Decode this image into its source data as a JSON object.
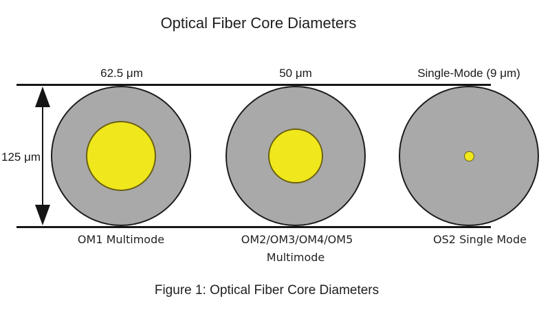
{
  "page": {
    "title": "Optical Fiber Core Diameters",
    "caption": "Figure 1: Optical Fiber Core Diameters"
  },
  "dimension": {
    "label": "125 μm",
    "value_um": 125
  },
  "fibers": [
    {
      "size_label": "62.5 μm",
      "name_label": "OM1 Multimode",
      "core_diameter_um": 62.5,
      "cladding_diameter_um": 125
    },
    {
      "size_label": "50 μm",
      "name_label": "OM2/OM3/OM4/OM5",
      "name_label_line2": "Multimode",
      "core_diameter_um": 50,
      "cladding_diameter_um": 125
    },
    {
      "size_label": "Single-Mode (9 μm)",
      "name_label": "OS2 Single Mode",
      "core_diameter_um": 9,
      "cladding_diameter_um": 125
    }
  ],
  "colors": {
    "cladding_fill": "#a9a9a9",
    "core_fill": "#f0e71c",
    "cladding_outline": "#1c1c1c",
    "core_outline": "#6b6114",
    "line": "#151515",
    "text": "#1e1e1e",
    "background": "#ffffff"
  }
}
